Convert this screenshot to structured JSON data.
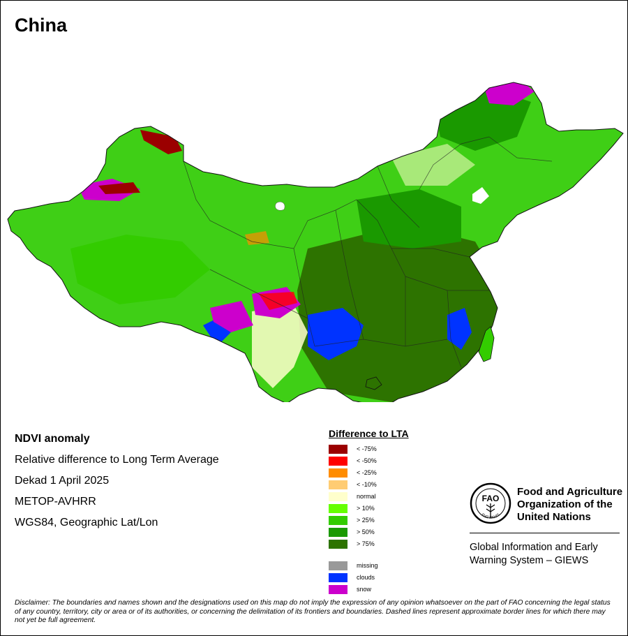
{
  "map": {
    "title": "China",
    "land_color": "#3fcf16",
    "water_color": "#ffffff"
  },
  "info": {
    "line1": "NDVI anomaly",
    "line2": "Relative difference to Long Term Average",
    "line3": "Dekad 1 April 2025",
    "line4": "METOP-AVHRR",
    "line5": "WGS84, Geographic Lat/Lon"
  },
  "legend": {
    "title": "Difference to LTA",
    "classes": [
      {
        "label": "< -75%",
        "color": "#9b0000"
      },
      {
        "label": "< -50%",
        "color": "#ff0000"
      },
      {
        "label": "< -25%",
        "color": "#ff8c00"
      },
      {
        "label": "< -10%",
        "color": "#ffcc73"
      },
      {
        "label": "normal",
        "color": "#ffffcc"
      },
      {
        "label": "> 10%",
        "color": "#66ff00"
      },
      {
        "label": "> 25%",
        "color": "#33cc00"
      },
      {
        "label": "> 50%",
        "color": "#1a9900"
      },
      {
        "label": "> 75%",
        "color": "#2d7300"
      }
    ],
    "extra": [
      {
        "label": "missing",
        "color": "#999999"
      },
      {
        "label": "clouds",
        "color": "#0033ff"
      },
      {
        "label": "snow",
        "color": "#cc00cc"
      }
    ]
  },
  "organization": {
    "logo_text": "FAO",
    "logo_motto": "FIAT PANIS",
    "name_line1": "Food and Agriculture",
    "name_line2": "Organization of the",
    "name_line3": "United Nations",
    "system_line1": "Global Information and Early",
    "system_line2": "Warning System – GIEWS"
  },
  "disclaimer": "Disclaimer: The boundaries and names shown and the designations used on this map do not imply the expression of any opinion whatsoever on the part of FAO concerning the legal status of any country, territory, city or area or of its authorities, or concerning the delimitation of its frontiers and boundaries. Dashed lines represent approximate border lines for which there may not yet be full agreement."
}
